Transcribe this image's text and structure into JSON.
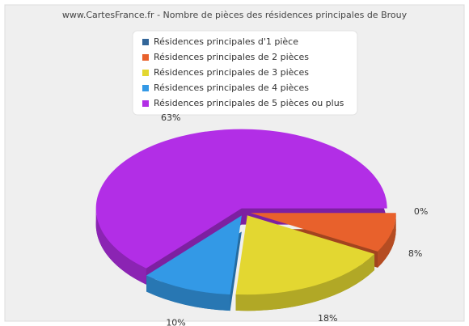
{
  "chart_data": {
    "type": "pie",
    "title": "www.CartesFrance.fr - Nombre de pièces des résidences principales de Brouy",
    "categories": [
      "Résidences principales d'1 pièce",
      "Résidences principales de 2 pièces",
      "Résidences principales de 3 pièces",
      "Résidences principales de 4 pièces",
      "Résidences principales de 5 pièces ou plus"
    ],
    "values": [
      0,
      8,
      18,
      10,
      63
    ],
    "value_labels": [
      "0%",
      "8%",
      "18%",
      "10%",
      "63%"
    ],
    "colors": [
      "#336699",
      "#e8612c",
      "#e3d731",
      "#3399e6",
      "#b22ee6"
    ]
  }
}
